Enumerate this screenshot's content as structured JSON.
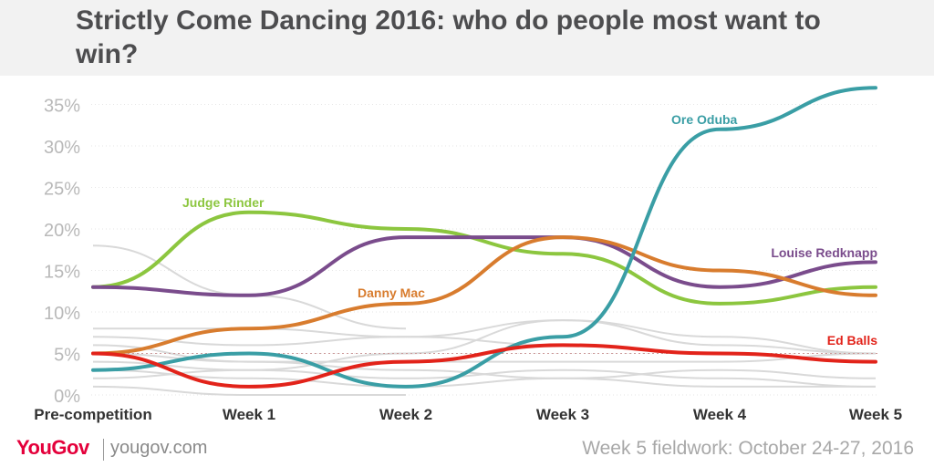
{
  "title": "Strictly Come Dancing 2016: who do people most want to win?",
  "footer": {
    "logo": "YouGov",
    "site": "yougov.com",
    "fieldwork": "Week 5 fieldwork: October 24-27, 2016"
  },
  "colors": {
    "grid": "#e6e6e6",
    "axis_text": "#b9b9b9",
    "category_text": "#333333",
    "background_lines": "#d9d9d9",
    "brand": "#e4003b"
  },
  "chart_data": {
    "type": "line",
    "title": "Strictly Come Dancing 2016: who do people most want to win?",
    "categories": [
      "Pre-competition",
      "Week 1",
      "Week 2",
      "Week 3",
      "Week 4",
      "Week 5"
    ],
    "ylim": [
      0,
      37
    ],
    "yticks": [
      0,
      5,
      10,
      15,
      20,
      25,
      30,
      35
    ],
    "ytick_labels": [
      "0%",
      "5%",
      "10%",
      "15%",
      "20%",
      "25%",
      "30%",
      "35%"
    ],
    "grid": true,
    "series": [
      {
        "name": "Judge Rinder",
        "color": "#8cc63f",
        "values": [
          13,
          22,
          20,
          17,
          11,
          13
        ]
      },
      {
        "name": "Louise Redknapp",
        "color": "#7a4c8c",
        "values": [
          13,
          12,
          19,
          19,
          13,
          16
        ]
      },
      {
        "name": "Danny Mac",
        "color": "#d87c2e",
        "values": [
          5,
          8,
          11,
          19,
          15,
          12
        ]
      },
      {
        "name": "Ore Oduba",
        "color": "#3a9ea5",
        "values": [
          3,
          5,
          1,
          7,
          32,
          37
        ]
      },
      {
        "name": "Ed Balls",
        "color": "#e2231a",
        "values": [
          5,
          1,
          4,
          6,
          5,
          4
        ]
      }
    ],
    "other_series": [
      {
        "values": [
          18,
          12,
          8
        ]
      },
      {
        "values": [
          8,
          8,
          7,
          6,
          5,
          4
        ]
      },
      {
        "values": [
          7,
          6,
          7,
          9,
          7,
          5
        ]
      },
      {
        "values": [
          6,
          4,
          4,
          4,
          4,
          5
        ]
      },
      {
        "values": [
          5,
          4,
          3,
          2,
          3,
          2
        ]
      },
      {
        "values": [
          4,
          3,
          2,
          3,
          2,
          1
        ]
      },
      {
        "values": [
          3,
          2,
          1,
          2,
          1,
          1
        ]
      },
      {
        "values": [
          1,
          0,
          0
        ]
      },
      {
        "values": [
          2,
          3,
          5,
          9,
          6,
          5
        ]
      }
    ]
  }
}
